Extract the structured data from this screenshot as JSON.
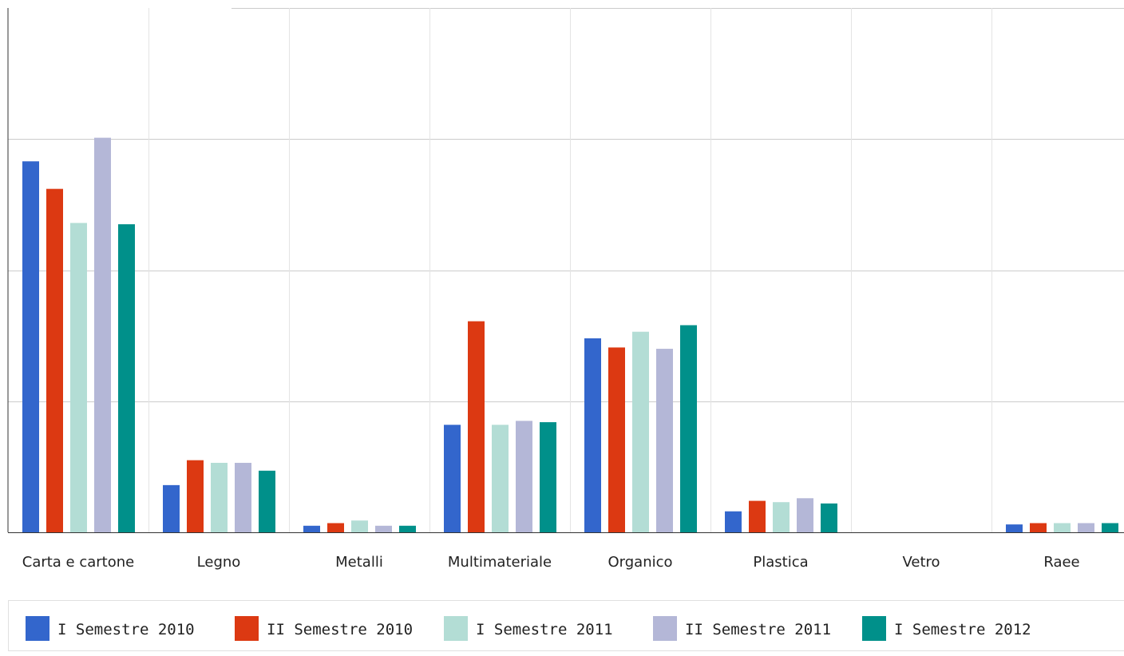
{
  "chart_data": {
    "type": "bar",
    "categories": [
      "Carta e cartone",
      "Legno",
      "Metalli",
      "Multimateriale",
      "Organico",
      "Plastica",
      "Vetro",
      "Raee"
    ],
    "ylim": [
      0,
      4
    ],
    "grid": true,
    "legend_position": "bottom",
    "series": [
      {
        "name": "I Semestre 2010",
        "color": "#3366cc",
        "values": [
          2.83,
          0.36,
          0.05,
          0.82,
          1.48,
          0.16,
          0,
          0.06
        ]
      },
      {
        "name": "II Semestre 2010",
        "color": "#dc3912",
        "values": [
          2.62,
          0.55,
          0.07,
          1.61,
          1.41,
          0.24,
          0,
          0.07
        ]
      },
      {
        "name": "I Semestre 2011",
        "color": "#b3ddd5",
        "values": [
          2.36,
          0.53,
          0.09,
          0.82,
          1.53,
          0.23,
          0,
          0.07
        ]
      },
      {
        "name": "II Semestre 2011",
        "color": "#b4b7d7",
        "values": [
          3.01,
          0.53,
          0.05,
          0.85,
          1.4,
          0.26,
          0,
          0.07
        ]
      },
      {
        "name": "I Semestre 2012",
        "color": "#00908a",
        "values": [
          2.35,
          0.47,
          0.05,
          0.84,
          1.58,
          0.22,
          0,
          0.07
        ]
      }
    ]
  }
}
